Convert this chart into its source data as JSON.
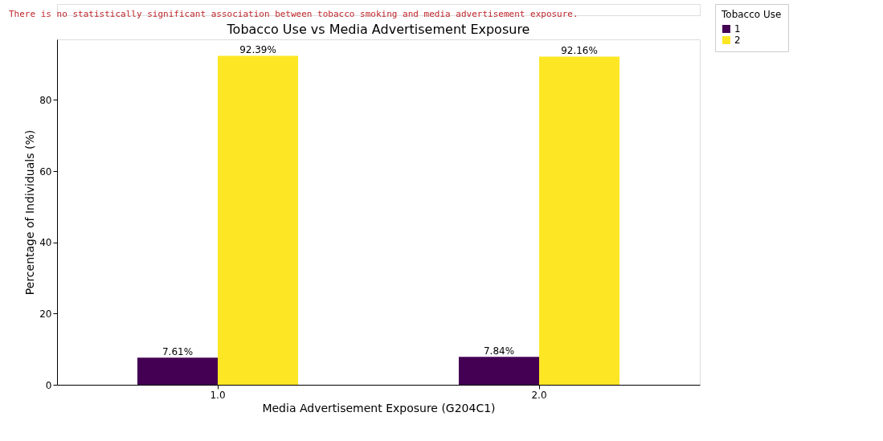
{
  "chart_data": {
    "type": "bar",
    "title": "Tobacco Use vs Media Advertisement Exposure",
    "xlabel": "Media Advertisement Exposure (G204C1)",
    "ylabel": "Percentage of Individuals (%)",
    "legend_title": "Tobacco Use",
    "annotations": [
      "There is no statistically significant association between tobacco smoking and media advertisement exposure."
    ],
    "categories": [
      "1.0",
      "2.0"
    ],
    "series": [
      {
        "name": "1",
        "color": "#440154",
        "values": [
          7.61,
          7.84
        ],
        "value_labels": [
          "7.61%",
          "7.84%"
        ]
      },
      {
        "name": "2",
        "color": "#fde725",
        "values": [
          92.39,
          92.16
        ],
        "value_labels": [
          "92.39%",
          "92.16%"
        ]
      }
    ],
    "ylim": [
      0,
      97.0
    ],
    "yticks": [
      0,
      20,
      40,
      60,
      80
    ],
    "grid": false,
    "legend": "top right"
  }
}
